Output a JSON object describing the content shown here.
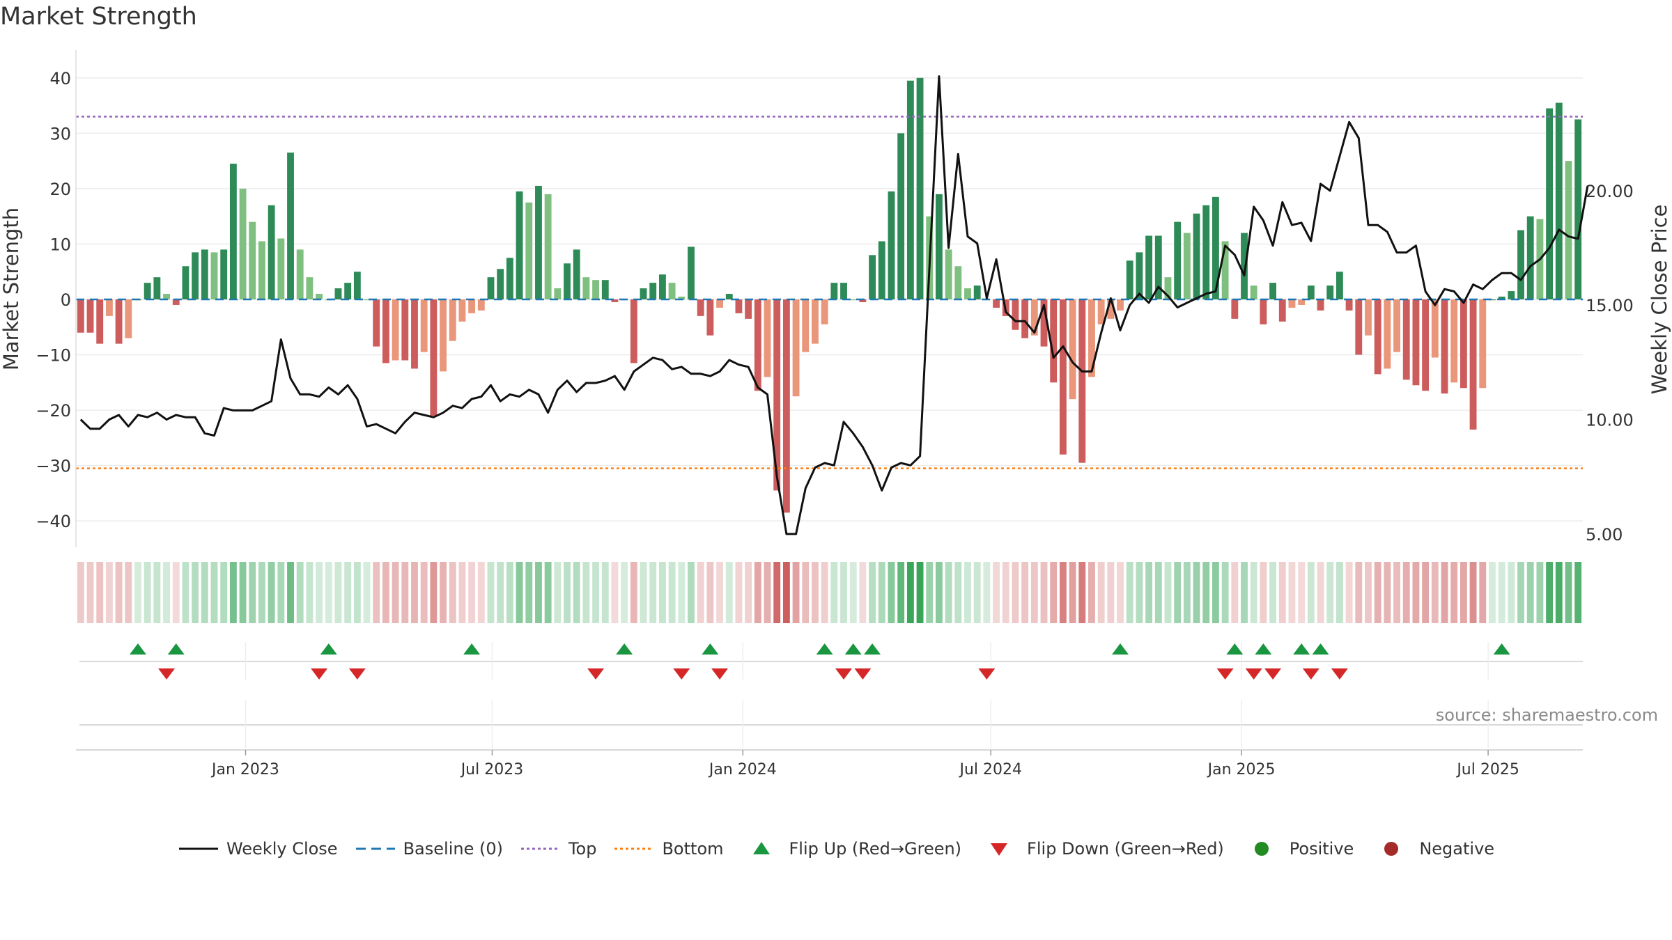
{
  "title": "Market Strength",
  "source": "source: sharemaestro.com",
  "colors": {
    "pos_dark": "#2e8b57",
    "pos_light": "#7fbf7f",
    "neg_dark": "#cd5c5c",
    "neg_light": "#e9967a",
    "close": "#111111",
    "baseline": "#1f77b4",
    "top": "#9467bd",
    "bottom": "#ff7f0e",
    "flip_up": "#1a9641",
    "flip_down": "#d62728",
    "positive": "#228b22",
    "negative": "#a52a2a"
  },
  "chart_data": {
    "type": "bar",
    "ylabel": "Market Strength",
    "y2label": "Weekly Close Price",
    "ylim": [
      -44,
      44
    ],
    "y2lim": [
      4.6,
      25.9
    ],
    "yticks": [
      "40",
      "30",
      "20",
      "10",
      "0",
      "−10",
      "−20",
      "−30",
      "−40"
    ],
    "y2ticks": [
      "20.00",
      "15.00",
      "10.00",
      "5.00"
    ],
    "xticks": [
      "Jan 2023",
      "Jul 2023",
      "Jan 2024",
      "Jul 2024",
      "Jan 2025",
      "Jul 2025"
    ],
    "top_level": 33,
    "bottom_level": -30.5,
    "strength": [
      -6,
      -6,
      -8,
      -3,
      -8,
      -7,
      0,
      3,
      4,
      1,
      -1,
      6,
      8.5,
      9,
      8.5,
      9,
      24.5,
      20,
      14,
      10.5,
      17,
      11,
      26.5,
      9,
      4,
      1,
      0,
      2,
      3,
      5,
      0,
      -8.5,
      -11.5,
      -11,
      -11,
      -12.5,
      -9.5,
      -21,
      -13,
      -7.5,
      -4,
      -2.5,
      -2,
      4,
      5.5,
      7.5,
      19.5,
      17.5,
      20.5,
      19,
      2,
      6.5,
      9,
      4,
      3.5,
      3.5,
      -0.5,
      0,
      -11.5,
      2,
      3,
      4.5,
      3,
      0.5,
      9.5,
      -3,
      -6.5,
      -1.5,
      1,
      -2.5,
      -3.5,
      -16.5,
      -14,
      -34.5,
      -38.5,
      -17.5,
      -9.5,
      -8,
      -4.5,
      3,
      3,
      0,
      -0.5,
      8,
      10.5,
      19.5,
      30,
      39.5,
      40,
      15,
      19,
      9,
      6,
      2,
      2.5,
      0,
      -1.5,
      -3,
      -5.5,
      -7,
      -6.5,
      -8.5,
      -15,
      -28,
      -18,
      -29.5,
      -14,
      -4.5,
      -3.5,
      -2,
      7,
      8.5,
      11.5,
      11.5,
      4,
      14,
      12,
      15.5,
      17,
      18.5,
      10.5,
      -3.5,
      12,
      2.5,
      -4.5,
      3,
      -4,
      -1.5,
      -1,
      2.5,
      -2,
      2.5,
      5,
      -2,
      -10,
      -6.5,
      -13.5,
      -12.5,
      -9.5,
      -14.5,
      -15.5,
      -16.5,
      -10.5,
      -17,
      -15,
      -16,
      -23.5,
      -16,
      0,
      0.5,
      1.5,
      12.5,
      15,
      14.5,
      34.5,
      35.5,
      25,
      32.5
    ],
    "close": [
      10.0,
      9.6,
      9.6,
      10.0,
      10.2,
      9.7,
      10.2,
      10.1,
      10.3,
      10.0,
      10.2,
      10.1,
      10.1,
      9.4,
      9.3,
      10.5,
      10.4,
      10.4,
      10.4,
      10.6,
      10.8,
      13.5,
      11.8,
      11.1,
      11.1,
      11.0,
      11.4,
      11.1,
      11.5,
      10.9,
      9.7,
      9.8,
      9.6,
      9.4,
      9.9,
      10.3,
      10.2,
      10.1,
      10.3,
      10.6,
      10.5,
      10.9,
      11.0,
      11.5,
      10.8,
      11.1,
      11.0,
      11.3,
      11.1,
      10.3,
      11.3,
      11.7,
      11.2,
      11.6,
      11.6,
      11.7,
      11.9,
      11.3,
      12.1,
      12.4,
      12.7,
      12.6,
      12.2,
      12.3,
      12.0,
      12.0,
      11.9,
      12.1,
      12.6,
      12.4,
      12.3,
      11.4,
      11.1,
      7.5,
      5.0,
      5.0,
      7.0,
      7.9,
      8.1,
      8.0,
      9.9,
      9.4,
      8.8,
      8.0,
      6.9,
      7.9,
      8.1,
      8.0,
      8.4,
      16.7,
      25.0,
      17.5,
      21.6,
      18.0,
      17.7,
      15.3,
      17.0,
      14.7,
      14.3,
      14.3,
      13.8,
      15.0,
      12.7,
      13.2,
      12.5,
      12.1,
      12.1,
      13.8,
      15.3,
      13.9,
      15.0,
      15.5,
      15.1,
      15.8,
      15.4,
      14.9,
      15.1,
      15.3,
      15.5,
      15.6,
      17.6,
      17.2,
      16.3,
      19.3,
      18.7,
      17.6,
      19.5,
      18.5,
      18.6,
      17.8,
      20.3,
      20.0,
      21.5,
      23.0,
      22.3,
      18.5,
      18.5,
      18.2,
      17.3,
      17.3,
      17.6,
      15.6,
      15.0,
      15.7,
      15.6,
      15.1,
      15.9,
      15.7,
      16.1,
      16.4,
      16.4,
      16.1,
      16.7,
      17.0,
      17.5,
      18.3,
      18.0,
      17.9,
      20.2
    ],
    "flip_up": [
      6,
      10,
      26,
      41,
      57,
      66,
      78,
      81,
      83,
      109,
      121,
      124,
      128,
      130,
      149
    ],
    "flip_down": [
      9,
      25,
      29,
      54,
      63,
      67,
      80,
      82,
      95,
      120,
      123,
      125,
      129,
      132
    ],
    "x_start_date": "2022-09-02",
    "legend": [
      "Weekly Close",
      "Baseline (0)",
      "Top",
      "Bottom",
      "Flip Up (Red→Green)",
      "Flip Down (Green→Red)",
      "Positive",
      "Negative"
    ]
  }
}
